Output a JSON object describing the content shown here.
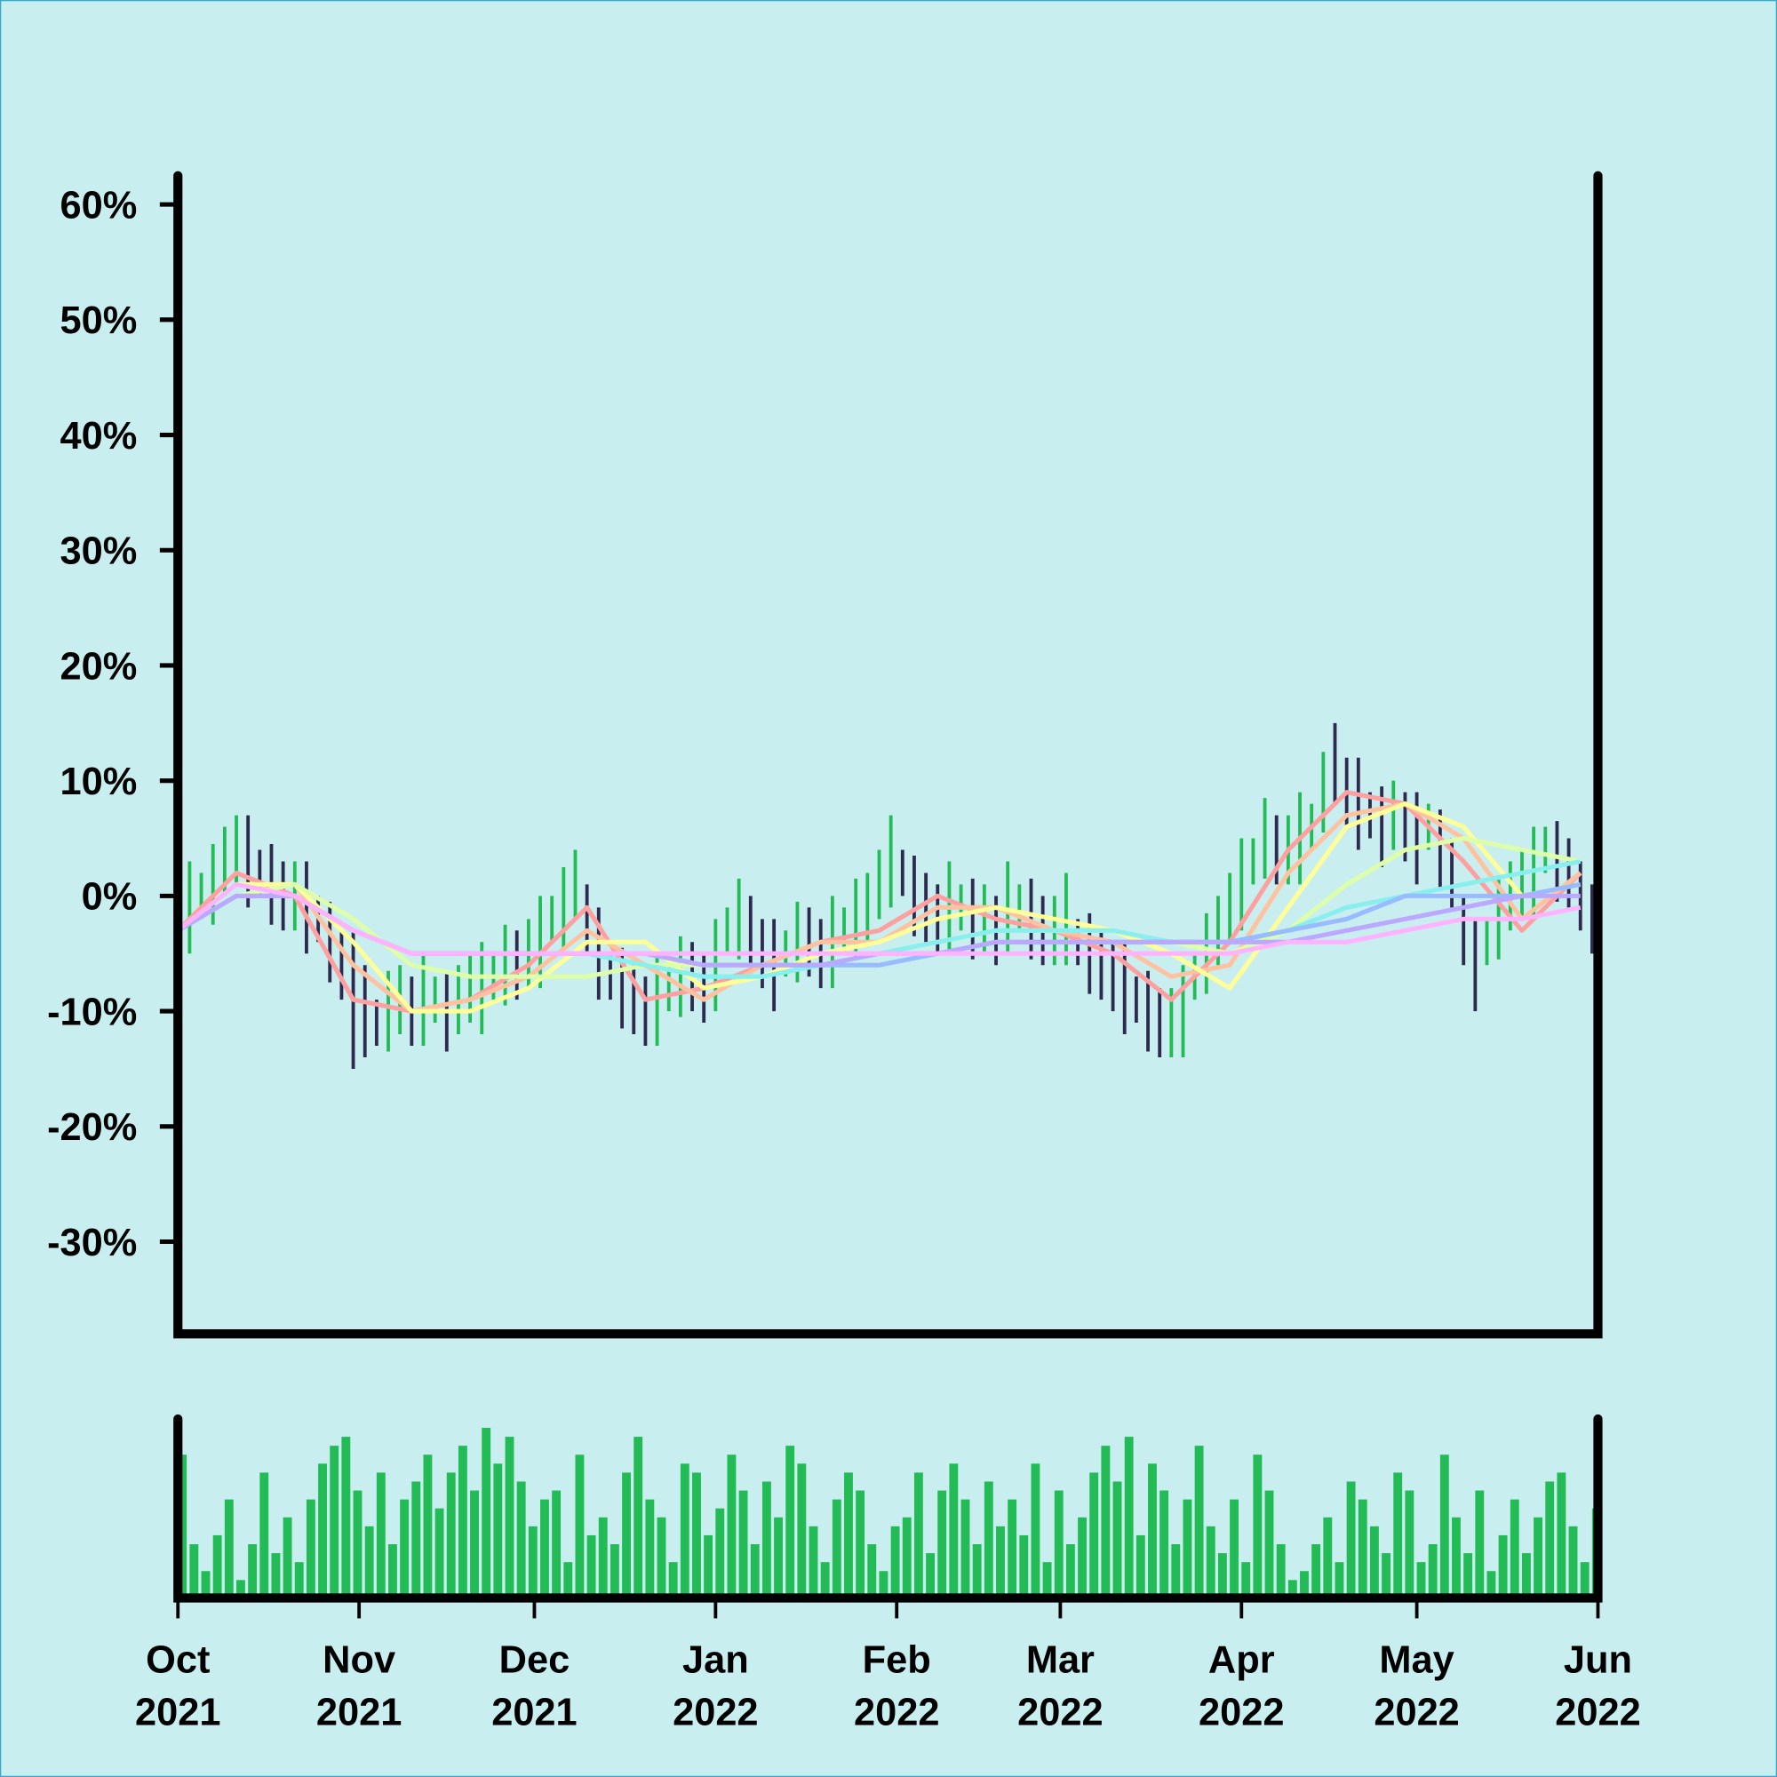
{
  "chart_data": [
    {
      "type": "ohlc",
      "xlim": [
        0,
        243
      ],
      "ylim": [
        -38,
        62.5
      ],
      "yticks": [
        {
          "value": -30,
          "label": "-30%"
        },
        {
          "value": -20,
          "label": "-20%"
        },
        {
          "value": -10,
          "label": "-10%"
        },
        {
          "value": 0,
          "label": "0%"
        },
        {
          "value": 10,
          "label": "10%"
        },
        {
          "value": 20,
          "label": "20%"
        },
        {
          "value": 30,
          "label": "30%"
        },
        {
          "value": 40,
          "label": "40%"
        },
        {
          "value": 50,
          "label": "50%"
        },
        {
          "value": 60,
          "label": "60%"
        }
      ],
      "bars": {
        "x": [
          0,
          2,
          4,
          6,
          8,
          10,
          12,
          14,
          16,
          18,
          20,
          22,
          24,
          26,
          28,
          30,
          32,
          34,
          36,
          38,
          40,
          42,
          44,
          46,
          48,
          50,
          52,
          54,
          56,
          58,
          60,
          62,
          64,
          66,
          68,
          70,
          72,
          74,
          76,
          78,
          80,
          82,
          84,
          86,
          88,
          90,
          92,
          94,
          96,
          98,
          100,
          102,
          104,
          106,
          108,
          110,
          112,
          114,
          116,
          118,
          120,
          122,
          124,
          126,
          128,
          130,
          132,
          134,
          136,
          138,
          140,
          142,
          144,
          146,
          148,
          150,
          152,
          154,
          156,
          158,
          160,
          162,
          164,
          166,
          168,
          170,
          172,
          174,
          176,
          178,
          180,
          182,
          184,
          186,
          188,
          190,
          192,
          194,
          196,
          198,
          200,
          202,
          204,
          206,
          208,
          210,
          212,
          214,
          216,
          218,
          220,
          222,
          224,
          226,
          228,
          230,
          232,
          234,
          236,
          238,
          240,
          242
        ],
        "high": [
          0,
          3,
          2,
          4.5,
          6,
          7,
          7,
          4,
          4.5,
          3,
          3,
          3,
          0,
          -0.5,
          -3,
          -3,
          -6,
          -9,
          -6.5,
          -6,
          -7,
          -5,
          -7,
          -6.5,
          -6,
          -5,
          -4,
          -5,
          -2.5,
          -3,
          -2,
          0,
          0,
          2.5,
          4,
          1,
          -1,
          -5,
          -4.5,
          -6,
          -7,
          -5,
          -6,
          -3.5,
          -4,
          -5,
          -2,
          -1,
          1.5,
          0,
          -2,
          -2,
          -3,
          -0.5,
          -1,
          -2,
          0,
          -1,
          1.5,
          2,
          4,
          7,
          4,
          3.5,
          2,
          1,
          3,
          1,
          1.5,
          1,
          0,
          3,
          1,
          1.5,
          0,
          0,
          2,
          -2,
          -1.5,
          -3,
          -4,
          -4,
          -7,
          -6.5,
          -8,
          -8,
          -6,
          -5,
          -1.5,
          0,
          2,
          5,
          5,
          8.5,
          7,
          7,
          9,
          8,
          12.5,
          15,
          12,
          12,
          9,
          9.5,
          10,
          9,
          9,
          8,
          7.5,
          5,
          0,
          -2,
          -2,
          1.5,
          3,
          4,
          6,
          6,
          6.5,
          5,
          3,
          1
        ],
        "low": [
          -6,
          -5,
          -2,
          -2.5,
          0,
          1,
          -1,
          0,
          -2.5,
          -3,
          -3,
          -5,
          -4,
          -7.5,
          -9,
          -15,
          -14,
          -13,
          -13.5,
          -12,
          -13,
          -13,
          -11,
          -13.5,
          -12,
          -11,
          -12,
          -9,
          -9.5,
          -9,
          -8,
          -8,
          -4,
          -4.5,
          -2,
          -5,
          -9,
          -9,
          -11.5,
          -12,
          -13,
          -13,
          -10,
          -10.5,
          -10,
          -11,
          -10,
          -5,
          -5.5,
          -6,
          -8,
          -10,
          -7,
          -7.5,
          -7,
          -8,
          -8,
          -5,
          -5.5,
          -4,
          -2,
          -1,
          0,
          -3.5,
          -4,
          -5,
          -5,
          -3,
          -5.5,
          -5,
          -6,
          -5,
          -3,
          -5.5,
          -6,
          -6,
          -6,
          -6,
          -8.5,
          -9,
          -10,
          -12,
          -11,
          -13.5,
          -14,
          -14,
          -14,
          -9,
          -8.5,
          -6,
          -4,
          -3,
          1,
          1.5,
          1,
          1,
          1,
          4,
          5.5,
          8,
          6,
          4,
          5,
          2.5,
          4,
          3,
          1,
          4,
          0.5,
          -1,
          -6,
          -10,
          -6,
          -5.5,
          -3,
          -2,
          -2,
          2,
          -0.5,
          -1,
          -3,
          -5
        ],
        "colors": [
          "#22bb55",
          "#22bb55",
          "#22bb55",
          "#22bb55",
          "#22bb55",
          "#22bb55",
          "#2e2a4f",
          "#2e2a4f",
          "#2e2a4f",
          "#2e2a4f",
          "#22bb55",
          "#2e2a4f",
          "#2e2a4f",
          "#2e2a4f",
          "#2e2a4f",
          "#2e2a4f",
          "#2e2a4f",
          "#2e2a4f",
          "#22bb55",
          "#22bb55",
          "#2e2a4f",
          "#22bb55",
          "#22bb55",
          "#2e2a4f",
          "#22bb55",
          "#22bb55",
          "#22bb55",
          "#22bb55",
          "#22bb55",
          "#2e2a4f",
          "#22bb55",
          "#22bb55",
          "#22bb55",
          "#22bb55",
          "#22bb55",
          "#2e2a4f",
          "#2e2a4f",
          "#2e2a4f",
          "#2e2a4f",
          "#2e2a4f",
          "#2e2a4f",
          "#22bb55",
          "#22bb55",
          "#22bb55",
          "#2e2a4f",
          "#2e2a4f",
          "#22bb55",
          "#22bb55",
          "#22bb55",
          "#2e2a4f",
          "#2e2a4f",
          "#2e2a4f",
          "#22bb55",
          "#22bb55",
          "#2e2a4f",
          "#2e2a4f",
          "#22bb55",
          "#22bb55",
          "#22bb55",
          "#22bb55",
          "#22bb55",
          "#22bb55",
          "#2e2a4f",
          "#2e2a4f",
          "#2e2a4f",
          "#2e2a4f",
          "#22bb55",
          "#22bb55",
          "#2e2a4f",
          "#22bb55",
          "#2e2a4f",
          "#22bb55",
          "#22bb55",
          "#2e2a4f",
          "#2e2a4f",
          "#22bb55",
          "#22bb55",
          "#2e2a4f",
          "#2e2a4f",
          "#2e2a4f",
          "#2e2a4f",
          "#2e2a4f",
          "#2e2a4f",
          "#2e2a4f",
          "#2e2a4f",
          "#22bb55",
          "#22bb55",
          "#22bb55",
          "#22bb55",
          "#22bb55",
          "#22bb55",
          "#22bb55",
          "#22bb55",
          "#22bb55",
          "#2e2a4f",
          "#22bb55",
          "#22bb55",
          "#22bb55",
          "#22bb55",
          "#2e2a4f",
          "#2e2a4f",
          "#2e2a4f",
          "#2e2a4f",
          "#2e2a4f",
          "#22bb55",
          "#2e2a4f",
          "#2e2a4f",
          "#22bb55",
          "#2e2a4f",
          "#2e2a4f",
          "#2e2a4f",
          "#2e2a4f",
          "#22bb55",
          "#22bb55",
          "#22bb55",
          "#22bb55",
          "#22bb55",
          "#22bb55",
          "#2e2a4f",
          "#2e2a4f",
          "#2e2a4f",
          "#2e2a4f"
        ]
      },
      "series_x": [
        0,
        10,
        20,
        30,
        40,
        50,
        60,
        70,
        80,
        90,
        100,
        110,
        120,
        130,
        140,
        150,
        160,
        170,
        180,
        190,
        200,
        210,
        220,
        230,
        240
      ],
      "series": [
        {
          "color": "#ffa0a0",
          "values": [
            -3,
            2,
            0,
            -9,
            -10,
            -9,
            -6,
            -1,
            -9,
            -8,
            -6,
            -4,
            -3,
            0,
            -2,
            -3,
            -5,
            -9,
            -4,
            4,
            9,
            8,
            3,
            -3,
            2
          ]
        },
        {
          "color": "#ffc2a0",
          "values": [
            -3,
            1,
            1,
            -6,
            -10,
            -9,
            -7,
            -3,
            -6,
            -9,
            -6,
            -4,
            -4,
            -1,
            -1,
            -3,
            -4,
            -7,
            -6,
            2,
            7,
            8,
            5,
            -2,
            2
          ]
        },
        {
          "color": "#ffff99",
          "values": [
            -3,
            1,
            1,
            -4,
            -10,
            -10,
            -8,
            -4,
            -4,
            -8,
            -7,
            -5,
            -4,
            -2,
            -1,
            -2,
            -3,
            -5,
            -8,
            -1,
            6,
            8,
            6,
            0,
            1
          ]
        },
        {
          "color": "#ddffaa",
          "values": [
            -3,
            0,
            1,
            -2,
            -6,
            -7,
            -7,
            -7,
            -6,
            -6,
            -6,
            -6,
            -5,
            -4,
            -3,
            -3,
            -3,
            -4,
            -5,
            -3,
            1,
            4,
            5,
            4,
            3
          ]
        },
        {
          "color": "#88eeee",
          "values": [
            -3,
            0,
            0,
            -3,
            -5,
            -5,
            -5,
            -5,
            -6,
            -7,
            -7,
            -6,
            -5,
            -4,
            -3,
            -3,
            -3,
            -4,
            -4,
            -3,
            -1,
            0,
            1,
            2,
            3
          ]
        },
        {
          "color": "#99bbff",
          "values": [
            -3,
            0,
            0,
            -3,
            -5,
            -5,
            -5,
            -5,
            -5,
            -6,
            -6,
            -6,
            -6,
            -5,
            -4,
            -4,
            -4,
            -4,
            -4,
            -3,
            -2,
            0,
            0,
            0,
            1
          ]
        },
        {
          "color": "#bba8ff",
          "values": [
            -3,
            0,
            0,
            -3,
            -5,
            -5,
            -5,
            -5,
            -5,
            -6,
            -6,
            -6,
            -5,
            -5,
            -4,
            -4,
            -4,
            -4,
            -4,
            -4,
            -3,
            -2,
            -1,
            0,
            0
          ]
        },
        {
          "color": "#ffb3ff",
          "values": [
            -3,
            1,
            0,
            -3,
            -5,
            -5,
            -5,
            -5,
            -5,
            -5,
            -5,
            -5,
            -5,
            -5,
            -5,
            -5,
            -5,
            -5,
            -5,
            -4,
            -4,
            -3,
            -2,
            -2,
            -1
          ]
        }
      ]
    },
    {
      "type": "bar",
      "color": "#22bb55",
      "ylim": [
        0,
        100
      ],
      "xticks": [
        {
          "value": 0,
          "label": "Oct 2021"
        },
        {
          "value": 31,
          "label": "Nov 2021"
        },
        {
          "value": 61,
          "label": "Dec 2021"
        },
        {
          "value": 92,
          "label": "Jan 2022"
        },
        {
          "value": 123,
          "label": "Feb 2022"
        },
        {
          "value": 151,
          "label": "Mar 2022"
        },
        {
          "value": 182,
          "label": "Apr 2022"
        },
        {
          "value": 212,
          "label": "May 2022"
        },
        {
          "value": 243,
          "label": "Jun 2022"
        }
      ],
      "values": [
        80,
        30,
        15,
        35,
        55,
        10,
        30,
        70,
        25,
        45,
        20,
        55,
        75,
        85,
        90,
        60,
        40,
        70,
        30,
        55,
        65,
        80,
        50,
        70,
        85,
        60,
        95,
        75,
        90,
        65,
        40,
        55,
        60,
        20,
        80,
        35,
        45,
        30,
        70,
        90,
        55,
        45,
        20,
        75,
        70,
        35,
        50,
        80,
        60,
        30,
        65,
        45,
        85,
        75,
        40,
        20,
        55,
        70,
        60,
        30,
        15,
        40,
        45,
        70,
        25,
        60,
        75,
        55,
        30,
        65,
        40,
        55,
        35,
        75,
        20,
        60,
        30,
        45,
        70,
        85,
        65,
        90,
        35,
        75,
        60,
        30,
        55,
        85,
        40,
        25,
        55,
        20,
        80,
        60,
        30,
        10,
        15,
        30,
        45,
        20,
        65,
        55,
        40,
        25,
        70,
        60,
        20,
        30,
        80,
        45,
        25,
        60,
        15,
        35,
        55,
        25,
        45,
        65,
        70,
        40,
        20,
        50
      ]
    }
  ]
}
